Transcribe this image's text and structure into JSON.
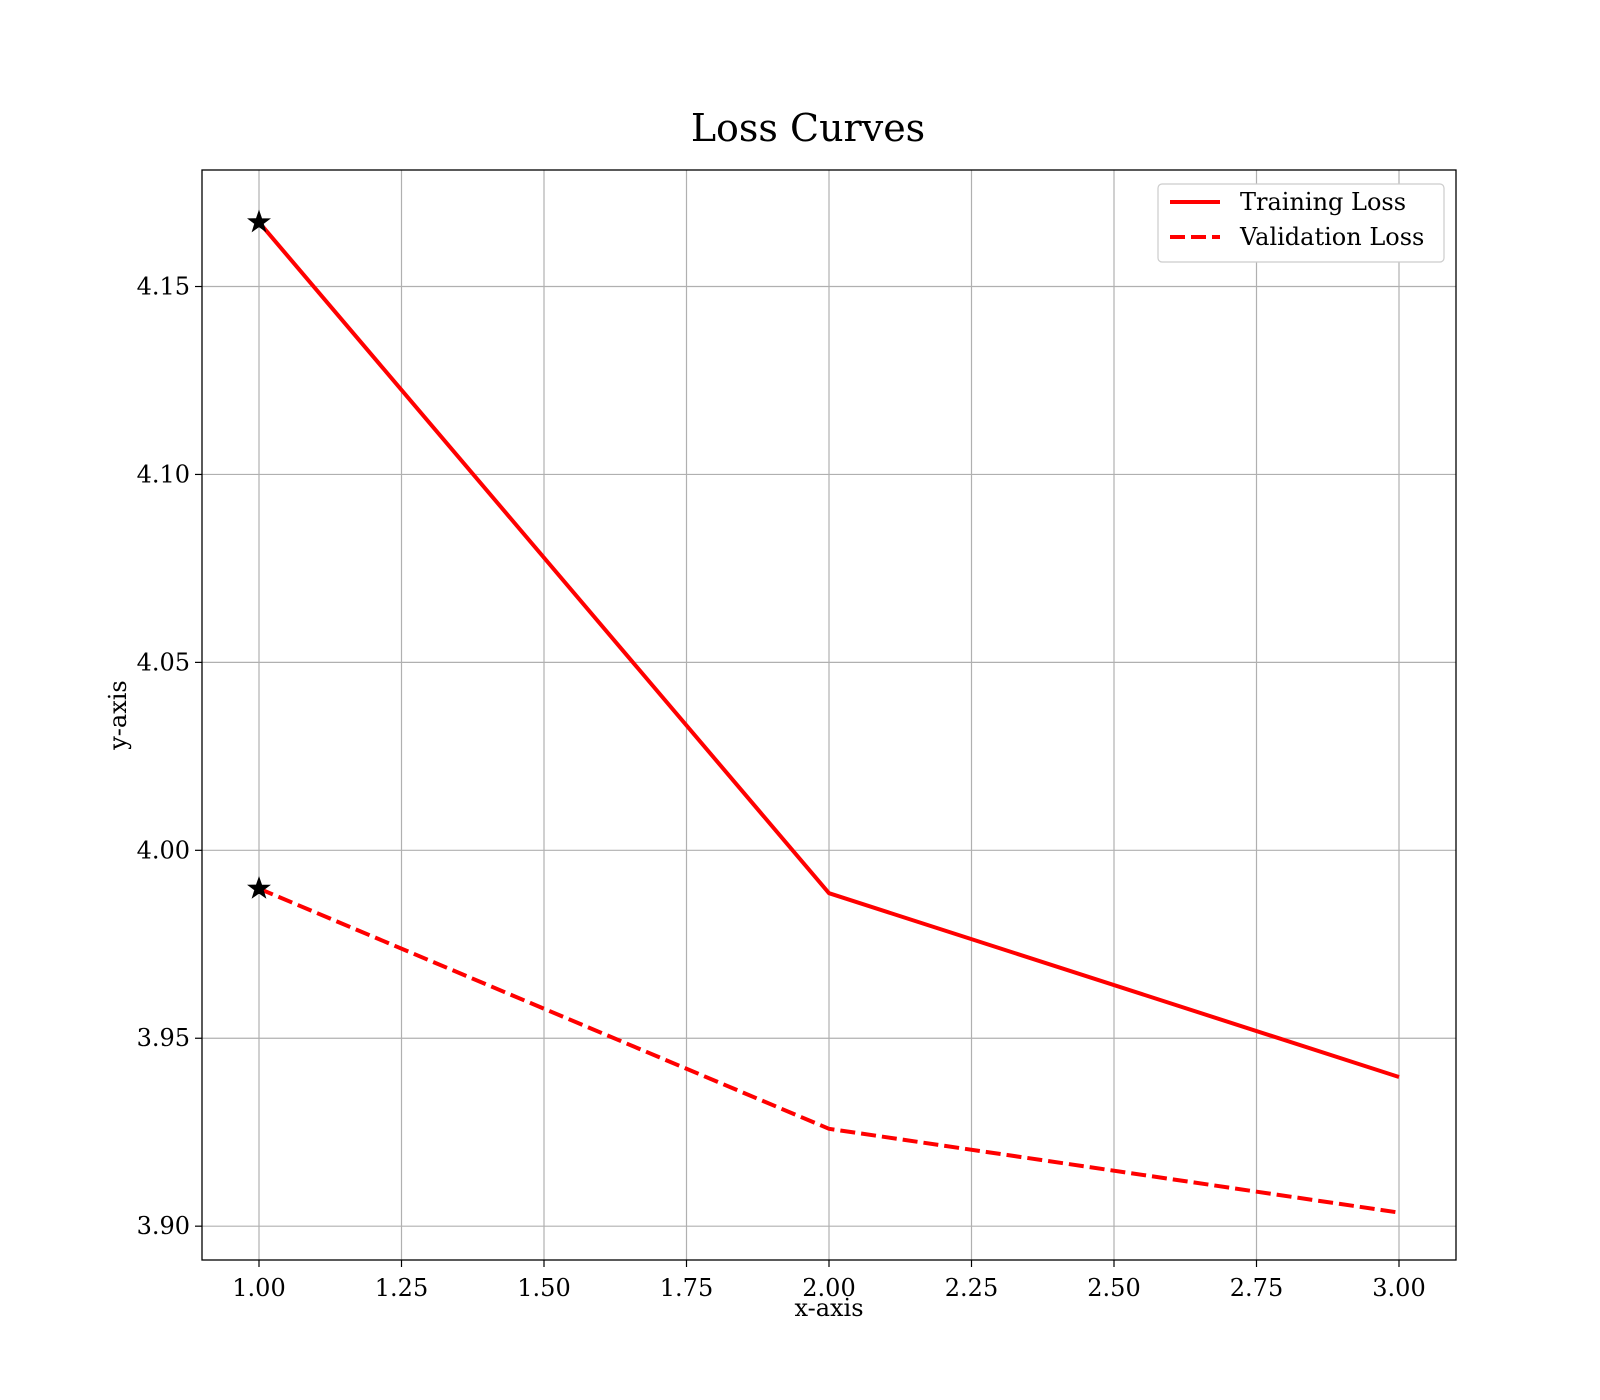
{
  "chart_data": {
    "type": "line",
    "title": "Loss Curves",
    "xlabel": "x-axis",
    "ylabel": "y-axis",
    "xlim": [
      0.9,
      3.1
    ],
    "ylim": [
      3.891,
      4.181
    ],
    "x_ticks": [
      "1.00",
      "1.25",
      "1.50",
      "1.75",
      "2.00",
      "2.25",
      "2.50",
      "2.75",
      "3.00"
    ],
    "y_ticks": [
      "3.90",
      "3.95",
      "4.00",
      "4.05",
      "4.10",
      "4.15"
    ],
    "grid": true,
    "legend_position": "top-right",
    "x": [
      1,
      2,
      3
    ],
    "series": [
      {
        "name": "Training Loss",
        "values": [
          4.1671,
          3.9886,
          3.9397
        ],
        "color": "#ff0000",
        "line_style": "solid",
        "first_point_marker": "star"
      },
      {
        "name": "Validation Loss",
        "values": [
          3.9898,
          3.9259,
          3.9036
        ],
        "color": "#ff0000",
        "line_style": "dashed",
        "first_point_marker": "star"
      }
    ]
  }
}
